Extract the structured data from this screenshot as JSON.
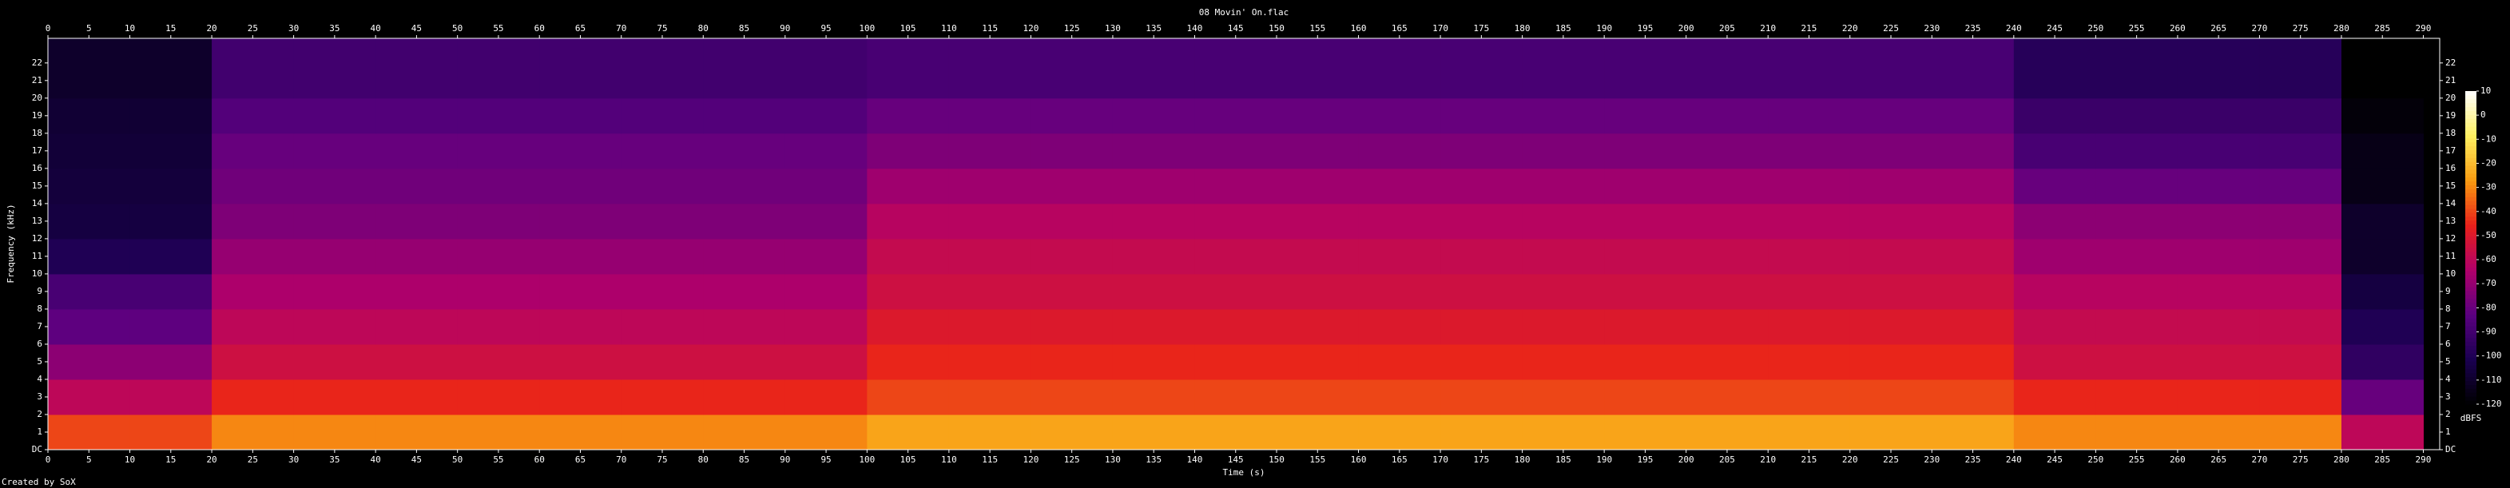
{
  "chart_data": {
    "type": "heatmap",
    "title": "08 Movin' On.flac",
    "x_label": "Time (s)",
    "y_label": "Frequency (kHz)",
    "colorbar_label": "dBFS",
    "footer": "Created by SoX",
    "xlim": [
      0,
      292
    ],
    "ylim": [
      0,
      23.4
    ],
    "xticks": [
      0,
      5,
      10,
      15,
      20,
      25,
      30,
      35,
      40,
      45,
      50,
      55,
      60,
      65,
      70,
      75,
      80,
      85,
      90,
      95,
      100,
      105,
      110,
      115,
      120,
      125,
      130,
      135,
      140,
      145,
      150,
      155,
      160,
      165,
      170,
      175,
      180,
      185,
      190,
      195,
      200,
      205,
      210,
      215,
      220,
      225,
      230,
      235,
      240,
      245,
      250,
      255,
      260,
      265,
      270,
      275,
      280,
      285,
      290
    ],
    "yticks": [
      {
        "value": 0,
        "label": "DC"
      },
      1,
      2,
      3,
      4,
      5,
      6,
      7,
      8,
      9,
      10,
      11,
      12,
      13,
      14,
      15,
      16,
      17,
      18,
      19,
      20,
      21,
      22
    ],
    "xbins": [
      0,
      10,
      20,
      30,
      40,
      50,
      60,
      70,
      80,
      90,
      100,
      110,
      120,
      130,
      140,
      150,
      160,
      170,
      180,
      190,
      200,
      210,
      220,
      230,
      240,
      250,
      260,
      270,
      280,
      290
    ],
    "ybins": [
      0,
      2,
      4,
      6,
      8,
      10,
      12,
      14,
      16,
      18,
      20,
      23.4
    ],
    "zlim": [
      -120,
      10
    ],
    "zticks": [
      10,
      0,
      -10,
      -20,
      -30,
      -40,
      -50,
      -60,
      -70,
      -80,
      -90,
      -100,
      -110,
      -120
    ],
    "colorscale": [
      "#000000",
      "#1a0050",
      "#5a0080",
      "#b0006a",
      "#e8201a",
      "#f89a10",
      "#fff060",
      "#ffffff"
    ],
    "z": [
      [
        -40,
        -40,
        -30,
        -30,
        -30,
        -30,
        -30,
        -30,
        -30,
        -30,
        -25,
        -25,
        -25,
        -25,
        -25,
        -25,
        -25,
        -25,
        -25,
        -25,
        -25,
        -25,
        -25,
        -25,
        -30,
        -30,
        -30,
        -30,
        -60
      ],
      [
        -60,
        -60,
        -45,
        -45,
        -45,
        -45,
        -45,
        -45,
        -45,
        -45,
        -40,
        -40,
        -40,
        -40,
        -40,
        -40,
        -40,
        -40,
        -40,
        -40,
        -40,
        -40,
        -40,
        -40,
        -45,
        -45,
        -45,
        -45,
        -80
      ],
      [
        -72,
        -72,
        -55,
        -55,
        -55,
        -55,
        -55,
        -55,
        -55,
        -55,
        -45,
        -45,
        -45,
        -45,
        -45,
        -45,
        -45,
        -45,
        -45,
        -45,
        -45,
        -45,
        -45,
        -45,
        -55,
        -55,
        -55,
        -55,
        -95
      ],
      [
        -82,
        -82,
        -60,
        -60,
        -60,
        -60,
        -60,
        -60,
        -60,
        -60,
        -50,
        -50,
        -50,
        -50,
        -50,
        -50,
        -50,
        -50,
        -50,
        -50,
        -50,
        -50,
        -50,
        -50,
        -58,
        -58,
        -58,
        -58,
        -100
      ],
      [
        -88,
        -88,
        -65,
        -65,
        -65,
        -65,
        -65,
        -65,
        -65,
        -65,
        -55,
        -55,
        -55,
        -55,
        -55,
        -55,
        -55,
        -55,
        -55,
        -55,
        -55,
        -55,
        -55,
        -55,
        -62,
        -62,
        -62,
        -62,
        -105
      ],
      [
        -100,
        -100,
        -70,
        -70,
        -70,
        -70,
        -70,
        -70,
        -70,
        -70,
        -58,
        -58,
        -58,
        -58,
        -58,
        -58,
        -58,
        -58,
        -58,
        -58,
        -58,
        -58,
        -58,
        -58,
        -68,
        -68,
        -68,
        -68,
        -110
      ],
      [
        -105,
        -105,
        -75,
        -75,
        -75,
        -75,
        -75,
        -75,
        -75,
        -75,
        -62,
        -62,
        -62,
        -62,
        -62,
        -62,
        -62,
        -62,
        -62,
        -62,
        -62,
        -62,
        -62,
        -62,
        -72,
        -72,
        -72,
        -72,
        -110
      ],
      [
        -106,
        -106,
        -78,
        -78,
        -78,
        -78,
        -78,
        -78,
        -78,
        -78,
        -68,
        -68,
        -68,
        -68,
        -68,
        -68,
        -68,
        -68,
        -68,
        -68,
        -68,
        -68,
        -68,
        -68,
        -80,
        -80,
        -80,
        -80,
        -115
      ],
      [
        -107,
        -107,
        -80,
        -80,
        -80,
        -80,
        -80,
        -80,
        -80,
        -80,
        -75,
        -75,
        -75,
        -75,
        -75,
        -75,
        -75,
        -75,
        -75,
        -75,
        -75,
        -75,
        -75,
        -75,
        -88,
        -88,
        -88,
        -88,
        -115
      ],
      [
        -108,
        -108,
        -85,
        -85,
        -85,
        -85,
        -85,
        -85,
        -85,
        -85,
        -80,
        -80,
        -80,
        -80,
        -80,
        -80,
        -80,
        -80,
        -80,
        -80,
        -80,
        -80,
        -80,
        -80,
        -92,
        -92,
        -92,
        -92,
        -118
      ],
      [
        -110,
        -110,
        -90,
        -90,
        -90,
        -90,
        -90,
        -90,
        -90,
        -90,
        -88,
        -88,
        -88,
        -88,
        -88,
        -88,
        -88,
        -88,
        -88,
        -88,
        -88,
        -88,
        -88,
        -88,
        -98,
        -98,
        -98,
        -98,
        -120
      ]
    ]
  }
}
